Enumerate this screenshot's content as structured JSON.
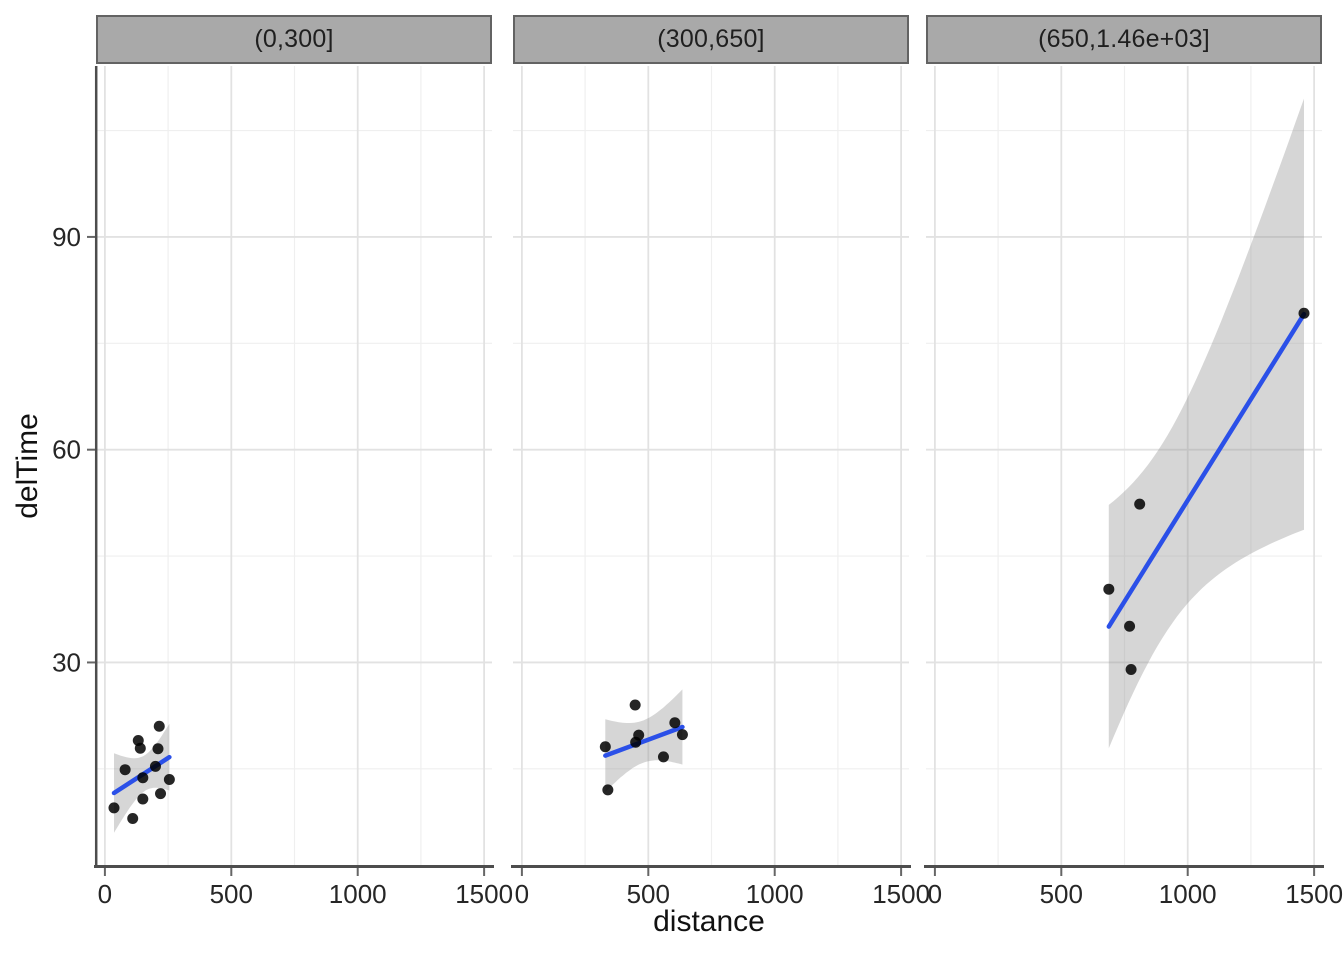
{
  "chart_data": {
    "type": "scatter",
    "title": "",
    "xlabel": "distance",
    "ylabel": "delTime",
    "legend": "none",
    "grid": "major and minor, light gray on white panels",
    "x_domain": [
      -35.2,
      1531.2
    ],
    "y_domain": [
      1.3,
      114.1
    ],
    "x_ticks": [
      {
        "value": 0,
        "label": "0"
      },
      {
        "value": 500,
        "label": "500"
      },
      {
        "value": 1000,
        "label": "1000"
      },
      {
        "value": 1500,
        "label": "1500"
      }
    ],
    "x_minor_ticks": [
      250,
      750,
      1250
    ],
    "y_ticks": [
      {
        "value": 30,
        "label": "30"
      },
      {
        "value": 60,
        "label": "60"
      },
      {
        "value": 90,
        "label": "90"
      }
    ],
    "y_minor_ticks": [
      15,
      45,
      75,
      105
    ],
    "smooth": {
      "method": "lm",
      "ci_level": 0.95,
      "line_color": "#2B50E8",
      "ribbon_color": "rgba(153,153,153,0.4)"
    },
    "point_color": "rgba(0,0,0,0.85)",
    "point_radius": 5.5,
    "facets": [
      {
        "label": "(0,300]",
        "points": [
          [
            220,
            11.5
          ],
          [
            80,
            14.88
          ],
          [
            150,
            13.75
          ],
          [
            110,
            8.0
          ],
          [
            210,
            17.83
          ],
          [
            215,
            21.0
          ],
          [
            255,
            13.5
          ],
          [
            200,
            15.35
          ],
          [
            132,
            19.0
          ],
          [
            36,
            9.5
          ],
          [
            140,
            17.9
          ],
          [
            150,
            10.75
          ]
        ]
      },
      {
        "label": "(300,650]",
        "points": [
          [
            560,
            16.68
          ],
          [
            340,
            12.03
          ],
          [
            330,
            18.11
          ],
          [
            605,
            21.5
          ],
          [
            462,
            19.75
          ],
          [
            448,
            24.0
          ],
          [
            450,
            18.75
          ],
          [
            635,
            19.83
          ]
        ]
      },
      {
        "label": "(650,1.46e+03]",
        "points": [
          [
            1460,
            79.24
          ],
          [
            688,
            40.33
          ],
          [
            776,
            29.0
          ],
          [
            770,
            35.1
          ],
          [
            810,
            52.32
          ]
        ]
      }
    ],
    "strip": {
      "fill": "#A9A9A9",
      "border": "#636363",
      "text_color": "#1F1F1F"
    },
    "colors": {
      "axis_line": "#4D4D4D",
      "grid_major": "#E2E2E2",
      "grid_minor": "#EFEFEF",
      "tick": "#666666",
      "tick_label": "#262626",
      "title": "#111111",
      "background": "#FFFFFF"
    }
  }
}
